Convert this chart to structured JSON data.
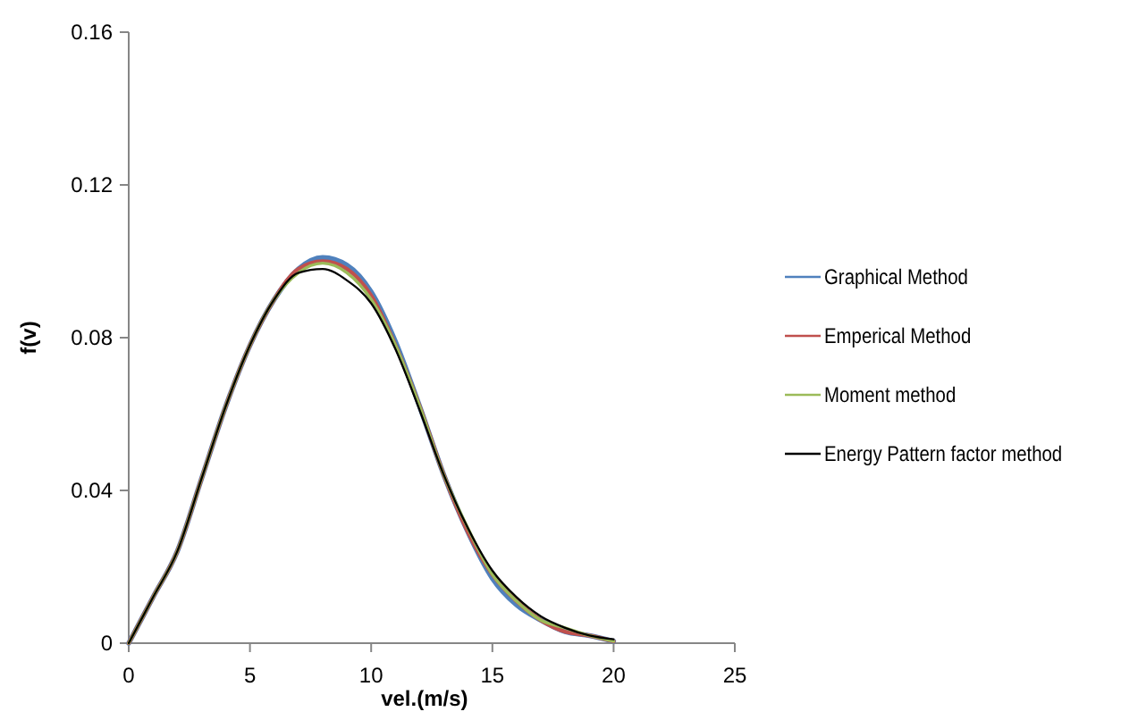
{
  "chart_data": {
    "type": "line",
    "xlabel": "vel.(m/s)",
    "ylabel": "f(v)",
    "x": [
      0,
      1,
      2,
      3,
      4,
      5,
      6,
      7,
      8,
      9,
      10,
      11,
      12,
      13,
      14,
      15,
      16,
      17,
      18,
      19,
      20
    ],
    "xlim": [
      0,
      25
    ],
    "xticks": [
      0,
      5,
      10,
      15,
      20,
      25
    ],
    "ylim": [
      0,
      0.16
    ],
    "yticks": [
      0,
      0.04,
      0.08,
      0.12,
      0.16
    ],
    "grid": false,
    "legend": "right",
    "marker": "none",
    "line_style": "solid",
    "series": [
      {
        "name": "Graphical Method",
        "color": "#4f81bd",
        "values": [
          0,
          0.012,
          0.024,
          0.043,
          0.062,
          0.078,
          0.09,
          0.098,
          0.101,
          0.099,
          0.092,
          0.079,
          0.062,
          0.044,
          0.029,
          0.017,
          0.01,
          0.006,
          0.003,
          0.002,
          0.0005
        ]
      },
      {
        "name": "Emperical Method",
        "color": "#c0504d",
        "values": [
          0,
          0.012,
          0.024,
          0.043,
          0.062,
          0.078,
          0.09,
          0.098,
          0.1,
          0.098,
          0.091,
          0.078,
          0.062,
          0.044,
          0.029,
          0.018,
          0.011,
          0.006,
          0.003,
          0.002,
          0.0005
        ]
      },
      {
        "name": "Moment method",
        "color": "#9bbb59",
        "values": [
          0,
          0.012,
          0.024,
          0.043,
          0.062,
          0.078,
          0.09,
          0.097,
          0.0995,
          0.097,
          0.09,
          0.078,
          0.062,
          0.044,
          0.03,
          0.018,
          0.011,
          0.006,
          0.004,
          0.002,
          0.0005
        ]
      },
      {
        "name": "Energy Pattern factor method",
        "color": "#000000",
        "values": [
          0,
          0.012,
          0.024,
          0.043,
          0.062,
          0.078,
          0.09,
          0.097,
          0.098,
          0.095,
          0.089,
          0.077,
          0.061,
          0.044,
          0.03,
          0.019,
          0.012,
          0.007,
          0.004,
          0.002,
          0.001
        ]
      }
    ]
  }
}
